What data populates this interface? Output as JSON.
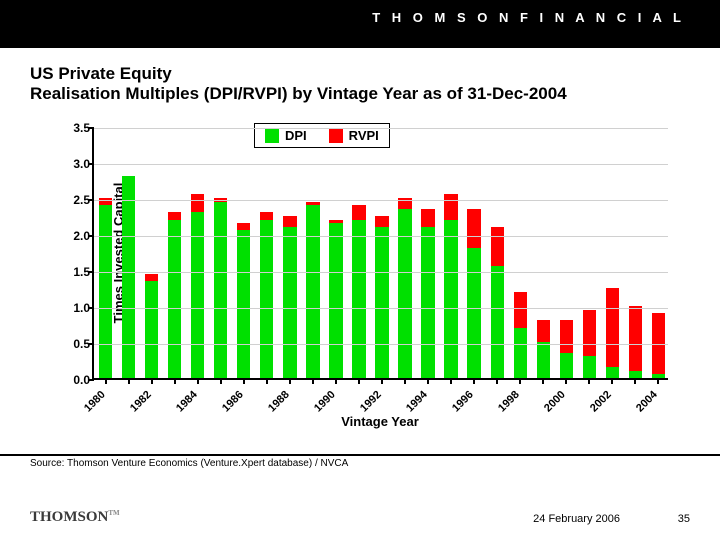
{
  "header": {
    "brand": "T H O M S O N    F I N A N C I A L"
  },
  "title": {
    "line1": "US Private Equity",
    "line2": "Realisation Multiples (DPI/RVPI) by Vintage Year as of 31-Dec-2004"
  },
  "chart": {
    "type": "stacked-bar",
    "ylabel": "Times Invested Capital",
    "xlabel": "Vintage Year",
    "ylim": [
      0,
      3.5
    ],
    "ytick_step": 0.5,
    "yticks": [
      "0.0",
      "0.5",
      "1.0",
      "1.5",
      "2.0",
      "2.5",
      "3.0",
      "3.5"
    ],
    "series": [
      {
        "name": "DPI",
        "color": "#00e000"
      },
      {
        "name": "RVPI",
        "color": "#ff0000"
      }
    ],
    "categories": [
      "1980",
      "1981",
      "1982",
      "1983",
      "1984",
      "1985",
      "1986",
      "1987",
      "1988",
      "1989",
      "1990",
      "1991",
      "1992",
      "1993",
      "1994",
      "1995",
      "1996",
      "1997",
      "1998",
      "1999",
      "2000",
      "2001",
      "2002",
      "2003",
      "2004"
    ],
    "xaxis_visible_every": 2,
    "dpi": [
      2.4,
      2.8,
      1.35,
      2.2,
      2.3,
      2.45,
      2.05,
      2.2,
      2.1,
      2.4,
      2.15,
      2.2,
      2.1,
      2.35,
      2.1,
      2.2,
      1.8,
      1.55,
      0.7,
      0.5,
      0.35,
      0.3,
      0.15,
      0.1,
      0.05
    ],
    "rvpi": [
      0.1,
      0.0,
      0.1,
      0.1,
      0.25,
      0.05,
      0.1,
      0.1,
      0.15,
      0.05,
      0.05,
      0.2,
      0.15,
      0.15,
      0.25,
      0.35,
      0.55,
      0.55,
      0.5,
      0.3,
      0.45,
      0.65,
      1.1,
      0.9,
      0.85
    ],
    "bar_width_ratio": 0.58,
    "grid_color": "#d0d0d0",
    "background_color": "#ffffff",
    "axis_color": "#000000",
    "title_fontsize": 17,
    "label_fontsize": 13,
    "tick_fontsize": 12
  },
  "source": "Source: Thomson Venture Economics (Venture.Xpert database) / NVCA",
  "footer": {
    "logo": "THOMSON",
    "date": "24 February 2006",
    "page": "35"
  },
  "legend": {
    "dpi": "DPI",
    "rvpi": "RVPI"
  }
}
